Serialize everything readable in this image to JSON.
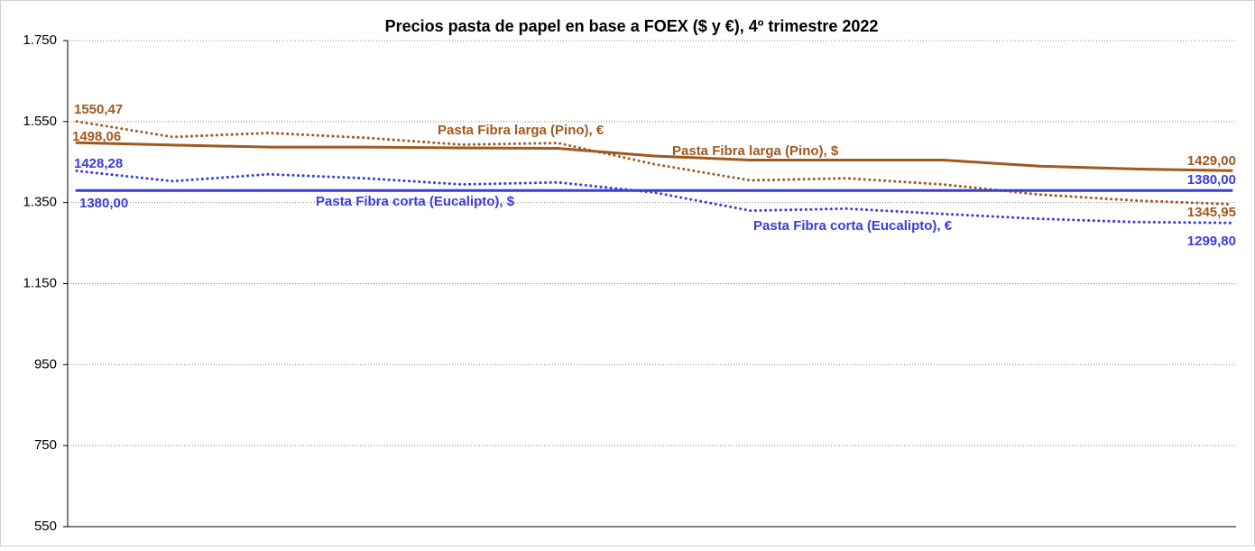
{
  "chart_data": {
    "type": "line",
    "title": "Precios pasta de papel en base a FOEX ($ y €), 4º trimestre 2022",
    "categories": [
      null,
      null,
      null,
      null,
      null,
      null,
      null,
      null,
      null,
      null,
      null,
      null,
      null
    ],
    "ylim": [
      550,
      1750
    ],
    "yticks": [
      550,
      750,
      950,
      {
        "value": 1150,
        "label": "1.150"
      },
      {
        "value": 1350,
        "label": "1.350"
      },
      {
        "value": 1550,
        "label": "1.550"
      },
      {
        "value": 1750,
        "label": "1.750"
      }
    ],
    "grid": true,
    "series": [
      {
        "name": "Pasta Fibra larga (Pino), €",
        "color": "#a0581e",
        "dashed": true,
        "values": [
          1550.47,
          1512,
          1522,
          1510,
          1493,
          1497,
          1445,
          1405,
          1410,
          1395,
          1370,
          1355,
          1345.95
        ],
        "value_labels": [
          "1550,47",
          null,
          null,
          null,
          null,
          null,
          null,
          null,
          null,
          null,
          null,
          null,
          "1345,95"
        ]
      },
      {
        "name": "Pasta Fibra larga (Pino), $",
        "color": "#a0581e",
        "dashed": false,
        "values": [
          1498.06,
          1492,
          1487,
          1487,
          1485,
          1484,
          1465,
          1455,
          1455,
          1455,
          1440,
          1433,
          1429
        ],
        "value_labels": [
          "1498,06",
          null,
          null,
          null,
          null,
          null,
          null,
          null,
          null,
          null,
          null,
          null,
          "1429,00"
        ]
      },
      {
        "name": "Pasta Fibra corta (Eucalipto), €",
        "color": "#3b3bdc",
        "dashed": true,
        "values": [
          1428.28,
          1403,
          1420,
          1410,
          1395,
          1400,
          1375,
          1330,
          1335,
          1322,
          1310,
          1302,
          1299.8
        ],
        "value_labels": [
          "1428,28",
          null,
          null,
          null,
          null,
          null,
          null,
          null,
          null,
          null,
          null,
          null,
          "1299,80"
        ]
      },
      {
        "name": "Pasta Fibra corta (Eucalipto), $",
        "color": "#3b3bdc",
        "dashed": false,
        "values": [
          1380,
          1380,
          1380,
          1380,
          1380,
          1380,
          1380,
          1380,
          1380,
          1380,
          1380,
          1380,
          1380
        ],
        "value_labels": [
          "1380,00",
          null,
          null,
          null,
          null,
          null,
          null,
          null,
          null,
          null,
          null,
          null,
          "1380,00"
        ]
      }
    ]
  }
}
